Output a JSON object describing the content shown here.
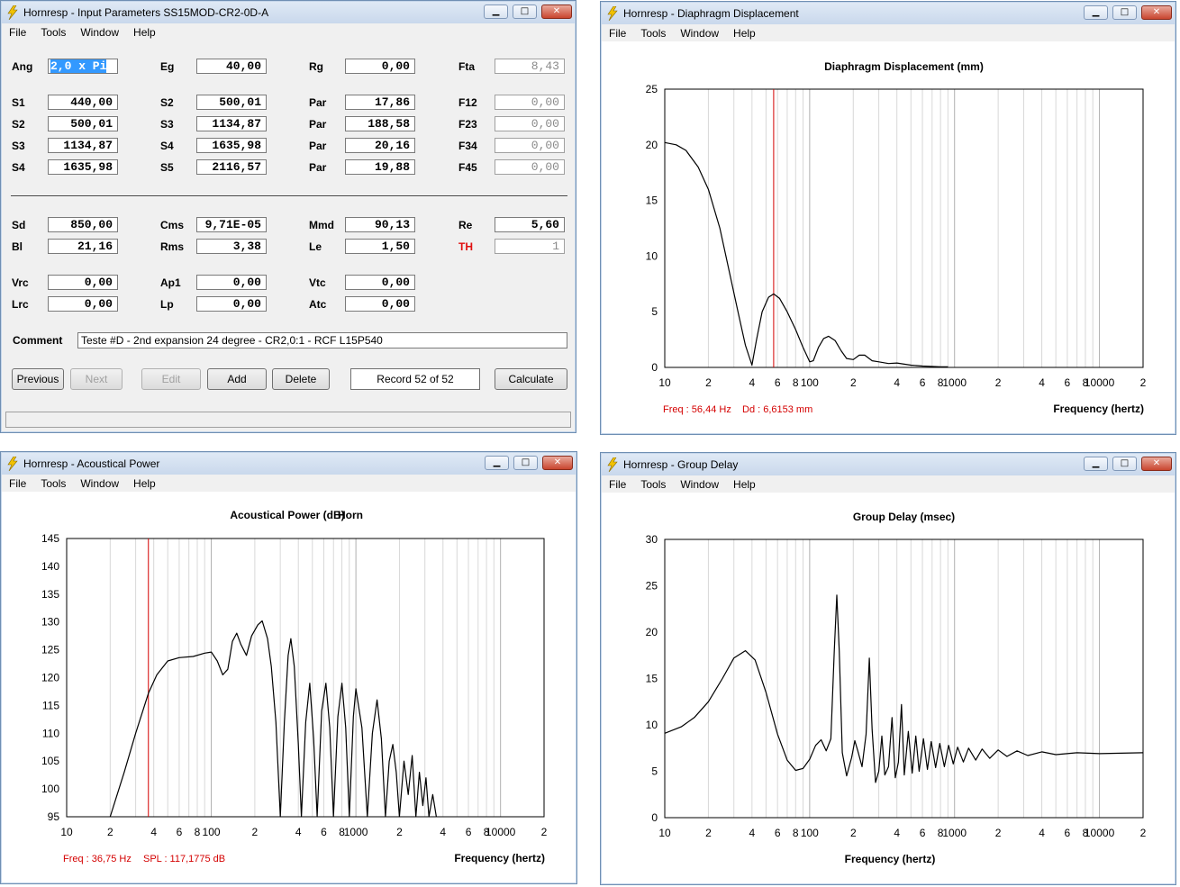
{
  "menu": [
    "File",
    "Tools",
    "Window",
    "Help"
  ],
  "input": {
    "title": "Hornresp - Input Parameters   SS15MOD-CR2-0D-A",
    "rows1": [
      {
        "label": "Ang",
        "value": "2,0 x Pi",
        "selected": true
      },
      {
        "label": "Eg",
        "value": "40,00"
      },
      {
        "label": "Rg",
        "value": "0,00"
      },
      {
        "label": "Fta",
        "value": "8,43",
        "readonly": true
      }
    ],
    "grid": [
      [
        {
          "label": "S1",
          "value": "440,00"
        },
        {
          "label": "S2",
          "value": "500,01"
        },
        {
          "label": "Par",
          "value": "17,86"
        },
        {
          "label": "F12",
          "value": "0,00",
          "readonly": true
        }
      ],
      [
        {
          "label": "S2",
          "value": "500,01"
        },
        {
          "label": "S3",
          "value": "1134,87"
        },
        {
          "label": "Par",
          "value": "188,58"
        },
        {
          "label": "F23",
          "value": "0,00",
          "readonly": true
        }
      ],
      [
        {
          "label": "S3",
          "value": "1134,87"
        },
        {
          "label": "S4",
          "value": "1635,98"
        },
        {
          "label": "Par",
          "value": "20,16"
        },
        {
          "label": "F34",
          "value": "0,00",
          "readonly": true
        }
      ],
      [
        {
          "label": "S4",
          "value": "1635,98"
        },
        {
          "label": "S5",
          "value": "2116,57"
        },
        {
          "label": "Par",
          "value": "19,88"
        },
        {
          "label": "F45",
          "value": "0,00",
          "readonly": true
        }
      ]
    ],
    "driver": [
      [
        {
          "label": "Sd",
          "value": "850,00"
        },
        {
          "label": "Cms",
          "value": "9,71E-05"
        },
        {
          "label": "Mmd",
          "value": "90,13"
        },
        {
          "label": "Re",
          "value": "5,60"
        }
      ],
      [
        {
          "label": "Bl",
          "value": "21,16"
        },
        {
          "label": "Rms",
          "value": "3,38"
        },
        {
          "label": "Le",
          "value": "1,50"
        },
        {
          "label": "TH",
          "value": "1",
          "readonly": true,
          "red": true
        }
      ]
    ],
    "chamber": [
      [
        {
          "label": "Vrc",
          "value": "0,00"
        },
        {
          "label": "Ap1",
          "value": "0,00"
        },
        {
          "label": "Vtc",
          "value": "0,00"
        }
      ],
      [
        {
          "label": "Lrc",
          "value": "0,00"
        },
        {
          "label": "Lp",
          "value": "0,00"
        },
        {
          "label": "Atc",
          "value": "0,00"
        }
      ]
    ],
    "comment_label": "Comment",
    "comment": "Teste #D - 2nd expansion 24 degree - CR2,0:1 - RCF L15P540",
    "buttons": {
      "previous": "Previous",
      "next": "Next",
      "edit": "Edit",
      "add": "Add",
      "delete": "Delete",
      "calculate": "Calculate"
    },
    "record": "Record 52 of 52"
  },
  "disp": {
    "title": "Hornresp - Diaphragm Displacement",
    "chart_data": {
      "type": "line",
      "title": "Diaphragm Displacement (mm)",
      "xlabel": "Frequency (hertz)",
      "x_scale": "log",
      "xlim": [
        10,
        20000
      ],
      "ylim": [
        0,
        25
      ],
      "yticks": [
        0,
        5,
        10,
        15,
        20,
        25
      ],
      "series": [
        {
          "points": [
            [
              10,
              20.2
            ],
            [
              12,
              20
            ],
            [
              14,
              19.5
            ],
            [
              17,
              18
            ],
            [
              20,
              16
            ],
            [
              24,
              12.5
            ],
            [
              28,
              8.5
            ],
            [
              32,
              5
            ],
            [
              36,
              2
            ],
            [
              40,
              0.2
            ],
            [
              43,
              2.5
            ],
            [
              47,
              5
            ],
            [
              52,
              6.3
            ],
            [
              56.44,
              6.6
            ],
            [
              62,
              6.2
            ],
            [
              70,
              5
            ],
            [
              80,
              3.4
            ],
            [
              90,
              1.8
            ],
            [
              100,
              0.5
            ],
            [
              106,
              0.6
            ],
            [
              115,
              1.8
            ],
            [
              125,
              2.6
            ],
            [
              135,
              2.8
            ],
            [
              150,
              2.4
            ],
            [
              165,
              1.5
            ],
            [
              180,
              0.8
            ],
            [
              200,
              0.7
            ],
            [
              220,
              1.1
            ],
            [
              240,
              1.1
            ],
            [
              270,
              0.6
            ],
            [
              300,
              0.5
            ],
            [
              350,
              0.35
            ],
            [
              400,
              0.4
            ],
            [
              500,
              0.2
            ],
            [
              600,
              0.12
            ],
            [
              800,
              0.06
            ],
            [
              900,
              0.05
            ]
          ]
        }
      ],
      "marker_freq": 56.44,
      "readout": {
        "freq": "Freq : 56,44 Hz",
        "value": "Dd : 6,6153 mm"
      }
    }
  },
  "power": {
    "title": "Hornresp - Acoustical Power",
    "chart_data": {
      "type": "line",
      "title": "Acoustical Power (dB)",
      "title_suffix": "Horn",
      "xlabel": "Frequency (hertz)",
      "x_scale": "log",
      "xlim": [
        10,
        20000
      ],
      "ylim": [
        95,
        145
      ],
      "yticks": [
        95,
        100,
        105,
        110,
        115,
        120,
        125,
        130,
        135,
        140,
        145
      ],
      "series": [
        {
          "points": [
            [
              20,
              95
            ],
            [
              25,
              103
            ],
            [
              30,
              110
            ],
            [
              36.75,
              117.2
            ],
            [
              42,
              120.5
            ],
            [
              50,
              123
            ],
            [
              60,
              123.6
            ],
            [
              75,
              123.8
            ],
            [
              90,
              124.4
            ],
            [
              100,
              124.6
            ],
            [
              110,
              123
            ],
            [
              120,
              120.5
            ],
            [
              130,
              121.5
            ],
            [
              140,
              126.5
            ],
            [
              150,
              128
            ],
            [
              160,
              126
            ],
            [
              175,
              124
            ],
            [
              190,
              127.5
            ],
            [
              210,
              129.5
            ],
            [
              225,
              130.2
            ],
            [
              245,
              127
            ],
            [
              260,
              122
            ],
            [
              280,
              112
            ],
            [
              300,
              95
            ],
            [
              320,
              112
            ],
            [
              340,
              124
            ],
            [
              355,
              127
            ],
            [
              375,
              122
            ],
            [
              400,
              108
            ],
            [
              420,
              95
            ],
            [
              450,
              112
            ],
            [
              480,
              119
            ],
            [
              510,
              109
            ],
            [
              540,
              95
            ],
            [
              580,
              114
            ],
            [
              620,
              119
            ],
            [
              660,
              111
            ],
            [
              700,
              95
            ],
            [
              750,
              113
            ],
            [
              800,
              119
            ],
            [
              850,
              111
            ],
            [
              900,
              95
            ],
            [
              960,
              113
            ],
            [
              1000,
              118
            ],
            [
              1100,
              111
            ],
            [
              1200,
              95
            ],
            [
              1300,
              110
            ],
            [
              1400,
              116
            ],
            [
              1500,
              109
            ],
            [
              1600,
              95
            ],
            [
              1700,
              105
            ],
            [
              1800,
              108
            ],
            [
              1900,
              103
            ],
            [
              2000,
              95
            ],
            [
              2150,
              105
            ],
            [
              2300,
              99
            ],
            [
              2450,
              106
            ],
            [
              2600,
              95
            ],
            [
              2750,
              103
            ],
            [
              2900,
              97
            ],
            [
              3050,
              102
            ],
            [
              3200,
              95
            ],
            [
              3400,
              99
            ],
            [
              3600,
              95
            ]
          ]
        }
      ],
      "marker_freq": 36.75,
      "readout": {
        "freq": "Freq : 36,75 Hz",
        "value": "SPL : 117,1775 dB"
      }
    }
  },
  "gd": {
    "title": "Hornresp - Group Delay",
    "chart_data": {
      "type": "line",
      "title": "Group Delay (msec)",
      "xlabel": "Frequency (hertz)",
      "x_scale": "log",
      "xlim": [
        10,
        20000
      ],
      "ylim": [
        0,
        30
      ],
      "yticks": [
        0,
        5,
        10,
        15,
        20,
        25,
        30
      ],
      "series": [
        {
          "points": [
            [
              10,
              9.1
            ],
            [
              13,
              9.8
            ],
            [
              16,
              10.8
            ],
            [
              20,
              12.5
            ],
            [
              25,
              15
            ],
            [
              30,
              17.2
            ],
            [
              36,
              18
            ],
            [
              42,
              17
            ],
            [
              50,
              13.5
            ],
            [
              60,
              9
            ],
            [
              70,
              6.2
            ],
            [
              80,
              5.1
            ],
            [
              90,
              5.3
            ],
            [
              100,
              6.3
            ],
            [
              110,
              7.8
            ],
            [
              120,
              8.4
            ],
            [
              130,
              7.2
            ],
            [
              140,
              8.5
            ],
            [
              148,
              18
            ],
            [
              154,
              24
            ],
            [
              160,
              18
            ],
            [
              168,
              7
            ],
            [
              180,
              4.5
            ],
            [
              195,
              6.5
            ],
            [
              205,
              8.3
            ],
            [
              215,
              7.2
            ],
            [
              230,
              5.5
            ],
            [
              245,
              9
            ],
            [
              258,
              17.2
            ],
            [
              270,
              9.5
            ],
            [
              285,
              3.8
            ],
            [
              300,
              5
            ],
            [
              315,
              8.8
            ],
            [
              330,
              4.6
            ],
            [
              350,
              5.5
            ],
            [
              370,
              10.8
            ],
            [
              390,
              4.3
            ],
            [
              410,
              6
            ],
            [
              430,
              12.2
            ],
            [
              450,
              4.6
            ],
            [
              480,
              9.3
            ],
            [
              510,
              4.8
            ],
            [
              540,
              8.8
            ],
            [
              570,
              5
            ],
            [
              610,
              8.5
            ],
            [
              650,
              5.2
            ],
            [
              690,
              8.2
            ],
            [
              740,
              5.4
            ],
            [
              790,
              8
            ],
            [
              850,
              5.5
            ],
            [
              910,
              7.8
            ],
            [
              980,
              5.8
            ],
            [
              1050,
              7.6
            ],
            [
              1150,
              6
            ],
            [
              1250,
              7.5
            ],
            [
              1400,
              6.2
            ],
            [
              1550,
              7.4
            ],
            [
              1750,
              6.4
            ],
            [
              2000,
              7.3
            ],
            [
              2300,
              6.6
            ],
            [
              2700,
              7.2
            ],
            [
              3200,
              6.7
            ],
            [
              4000,
              7.1
            ],
            [
              5000,
              6.8
            ],
            [
              7000,
              7
            ],
            [
              10000,
              6.9
            ],
            [
              20000,
              7
            ]
          ]
        }
      ]
    }
  }
}
